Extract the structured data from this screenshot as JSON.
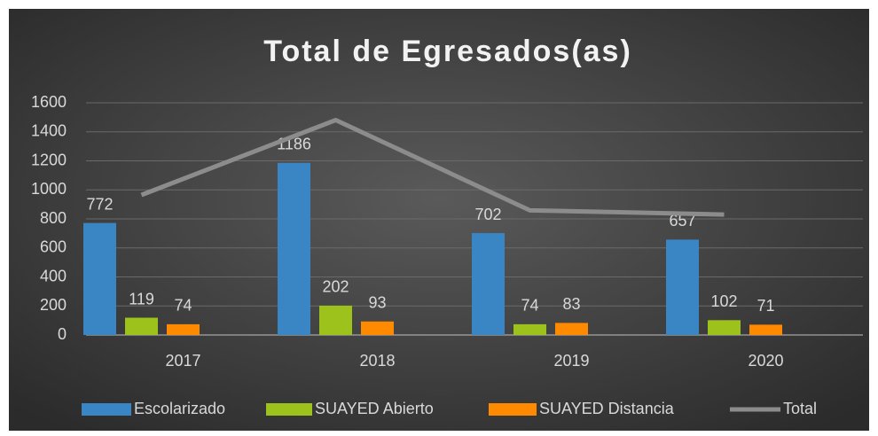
{
  "chart_data": {
    "type": "bar",
    "title": "Total de Egresados(as)",
    "categories": [
      "2017",
      "2018",
      "2019",
      "2020"
    ],
    "series": [
      {
        "name": "Escolarizado",
        "color": "#3a86c4",
        "values": [
          772,
          1186,
          702,
          657
        ]
      },
      {
        "name": "SUAYED Abierto",
        "color": "#9dc21c",
        "values": [
          119,
          202,
          74,
          102
        ]
      },
      {
        "name": "SUAYED  Distancia",
        "color": "#ff8a00",
        "values": [
          74,
          93,
          83,
          71
        ]
      },
      {
        "name": "Total",
        "color": "#8c8c8c",
        "type": "line",
        "values": [
          965,
          1481,
          859,
          830
        ]
      }
    ],
    "ylim": [
      0,
      1600
    ],
    "yticks": [
      0,
      200,
      400,
      600,
      800,
      1000,
      1200,
      1400,
      1600
    ],
    "grid": true,
    "legend": "bottom"
  }
}
